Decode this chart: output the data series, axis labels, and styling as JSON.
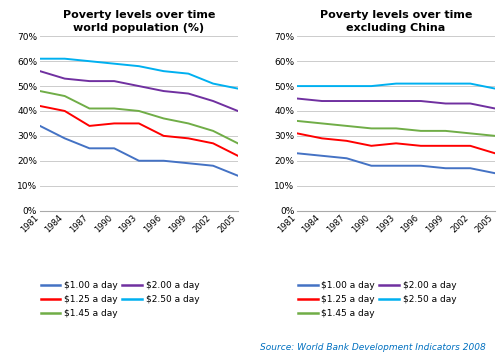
{
  "years": [
    1981,
    1984,
    1987,
    1990,
    1993,
    1996,
    1999,
    2002,
    2005
  ],
  "title1": "Poverty levels over time\nworld population (%)",
  "title2": "Poverty levels over time\nexcluding China",
  "source": "Source: World Bank Development Indicators 2008",
  "colors": {
    "$1.00 a day": "#4472C4",
    "$1.25 a day": "#FF0000",
    "$1.45 a day": "#70AD47",
    "$2.00 a day": "#7030A0",
    "$2.50 a day": "#00B0F0"
  },
  "world": {
    "$1.00 a day": [
      34,
      29,
      25,
      25,
      20,
      20,
      19,
      18,
      14
    ],
    "$1.25 a day": [
      42,
      40,
      34,
      35,
      35,
      30,
      29,
      27,
      22
    ],
    "$1.45 a day": [
      48,
      46,
      41,
      41,
      40,
      37,
      35,
      32,
      27
    ],
    "$2.00 a day": [
      56,
      53,
      52,
      52,
      50,
      48,
      47,
      44,
      40
    ],
    "$2.50 a day": [
      61,
      61,
      60,
      59,
      58,
      56,
      55,
      51,
      49
    ]
  },
  "excl_china": {
    "$1.00 a day": [
      23,
      22,
      21,
      18,
      18,
      18,
      17,
      17,
      15
    ],
    "$1.25 a day": [
      31,
      29,
      28,
      26,
      27,
      26,
      26,
      26,
      23
    ],
    "$1.45 a day": [
      36,
      35,
      34,
      33,
      33,
      32,
      32,
      31,
      30
    ],
    "$2.00 a day": [
      45,
      44,
      44,
      44,
      44,
      44,
      43,
      43,
      41
    ],
    "$2.50 a day": [
      50,
      50,
      50,
      50,
      51,
      51,
      51,
      51,
      49
    ]
  },
  "ylim": [
    0,
    70
  ],
  "yticks": [
    0,
    10,
    20,
    30,
    40,
    50,
    60,
    70
  ],
  "legend_order": [
    "$1.00 a day",
    "$1.25 a day",
    "$1.45 a day",
    "$2.00 a day",
    "$2.50 a day"
  ],
  "background_color": "#FFFFFF",
  "grid_color": "#CCCCCC",
  "source_color": "#0070C0"
}
